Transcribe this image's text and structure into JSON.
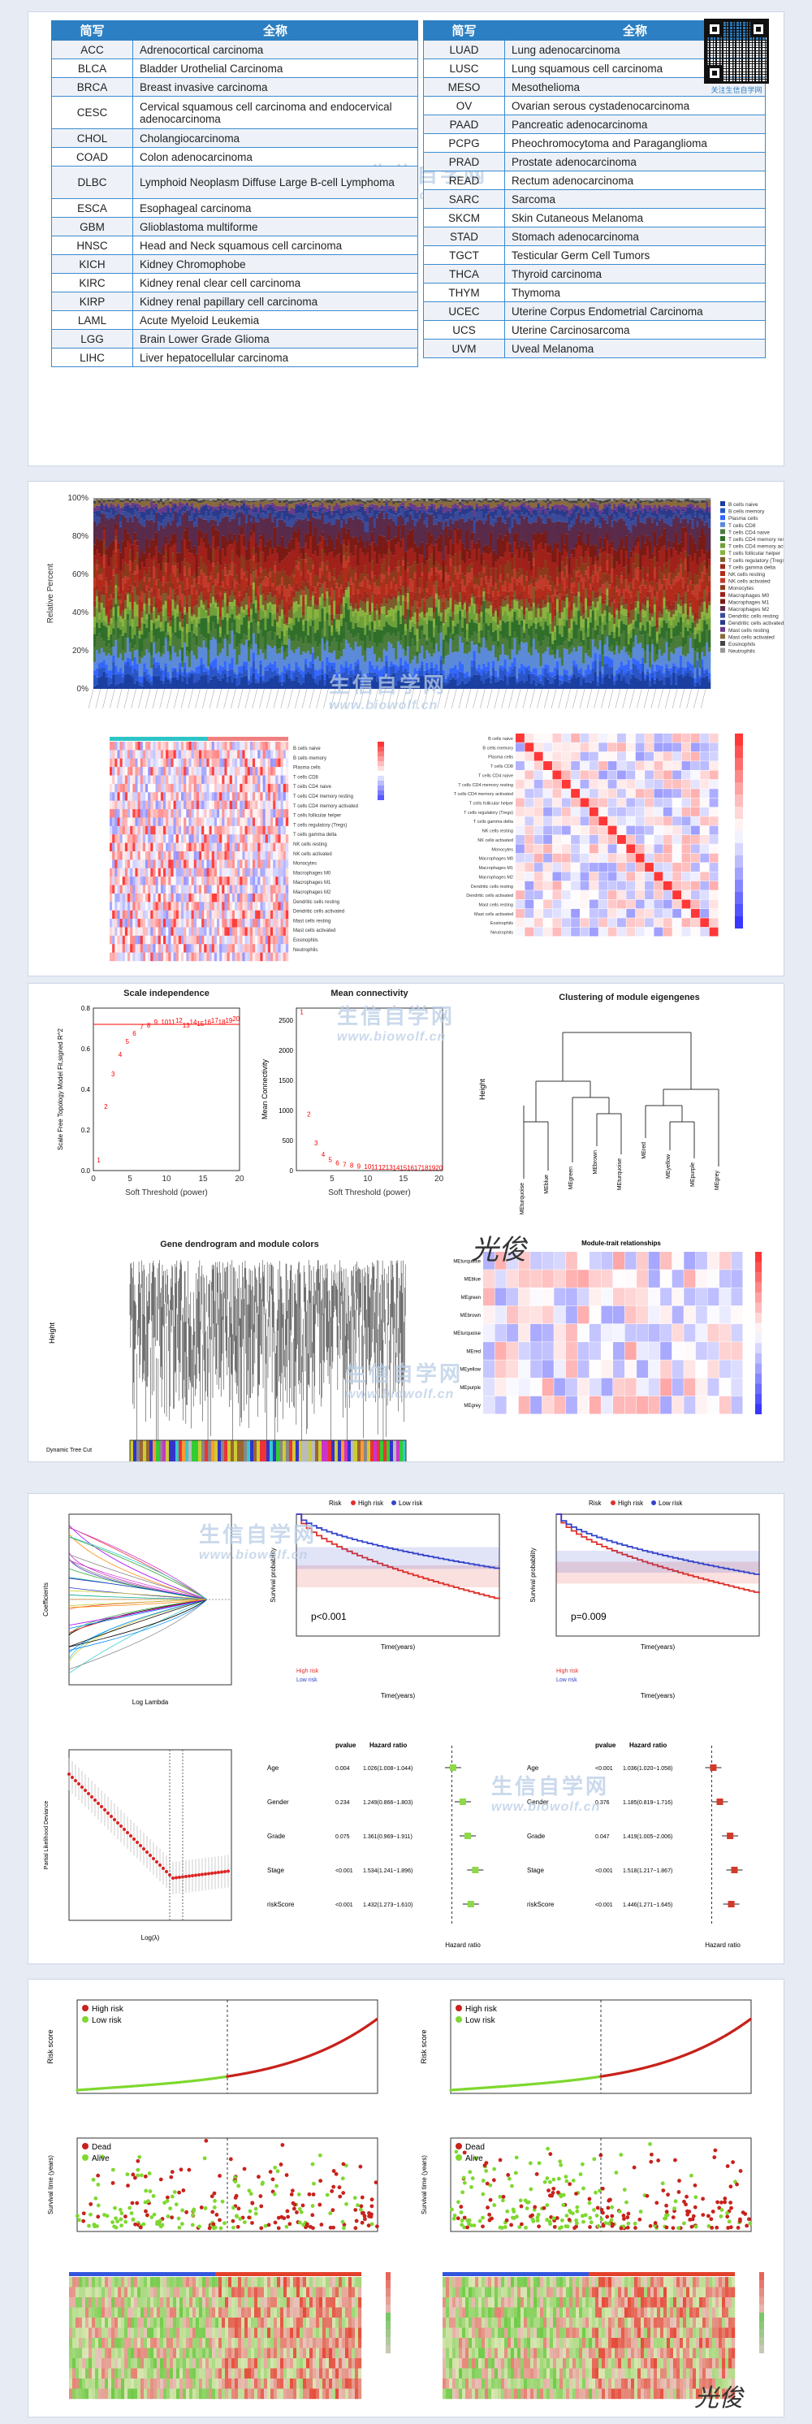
{
  "table_left": {
    "headers": [
      "简写",
      "全称"
    ],
    "rows": [
      [
        "ACC",
        "Adrenocortical carcinoma"
      ],
      [
        "BLCA",
        "Bladder Urothelial Carcinoma"
      ],
      [
        "BRCA",
        "Breast invasive carcinoma"
      ],
      [
        "CESC",
        "Cervical squamous cell carcinoma and endocervical adenocarcinoma"
      ],
      [
        "CHOL",
        "Cholangiocarcinoma"
      ],
      [
        "COAD",
        "Colon adenocarcinoma"
      ],
      [
        "DLBC",
        "Lymphoid Neoplasm Diffuse Large B-cell Lymphoma"
      ],
      [
        "ESCA",
        "Esophageal carcinoma"
      ],
      [
        "GBM",
        "Glioblastoma multiforme"
      ],
      [
        "HNSC",
        "Head and Neck squamous cell carcinoma"
      ],
      [
        "KICH",
        "Kidney Chromophobe"
      ],
      [
        "KIRC",
        "Kidney renal clear cell carcinoma"
      ],
      [
        "KIRP",
        "Kidney renal papillary cell carcinoma"
      ],
      [
        "LAML",
        "Acute Myeloid Leukemia"
      ],
      [
        "LGG",
        "Brain Lower Grade Glioma"
      ],
      [
        "LIHC",
        "Liver hepatocellular carcinoma"
      ]
    ]
  },
  "table_right": {
    "headers": [
      "简写",
      "全称"
    ],
    "rows": [
      [
        "LUAD",
        "Lung adenocarcinoma"
      ],
      [
        "LUSC",
        "Lung squamous cell carcinoma"
      ],
      [
        "MESO",
        "Mesothelioma"
      ],
      [
        "OV",
        "Ovarian serous cystadenocarcinoma"
      ],
      [
        "PAAD",
        "Pancreatic adenocarcinoma"
      ],
      [
        "PCPG",
        "Pheochromocytoma and Paraganglioma"
      ],
      [
        "PRAD",
        "Prostate adenocarcinoma"
      ],
      [
        "READ",
        "Rectum adenocarcinoma"
      ],
      [
        "SARC",
        "Sarcoma"
      ],
      [
        "SKCM",
        "Skin Cutaneous Melanoma"
      ],
      [
        "STAD",
        "Stomach adenocarcinoma"
      ],
      [
        "TGCT",
        "Testicular Germ Cell Tumors"
      ],
      [
        "THCA",
        "Thyroid carcinoma"
      ],
      [
        "THYM",
        "Thymoma"
      ],
      [
        "UCEC",
        "Uterine Corpus Endometrial Carcinoma"
      ],
      [
        "UCS",
        "Uterine Carcinosarcoma"
      ],
      [
        "UVM",
        "Uveal Melanoma"
      ]
    ]
  },
  "qr_caption": "关注生信自学网",
  "watermark": {
    "cn": "生信自学网",
    "en": "www.biowolf.cn"
  },
  "signature": "光俊",
  "colors": {
    "table_header": "#2c7fc2",
    "high_risk": "#e0302a",
    "low_risk": "#3344cc",
    "alive": "#7fd830",
    "dead": "#c8221c"
  },
  "cibersort": {
    "ylabel": "Relative Percent",
    "ticks": [
      "0%",
      "20%",
      "40%",
      "60%",
      "80%",
      "100%"
    ],
    "legend": [
      "B cells naive",
      "B cells memory",
      "Plasma cells",
      "T cells CD8",
      "T cells CD4 naive",
      "T cells CD4 memory resting",
      "T cells CD4 memory activated",
      "T cells follicular helper",
      "T cells regulatory (Tregs)",
      "T cells gamma delta",
      "NK cells resting",
      "NK cells activated",
      "Monocytes",
      "Macrophages M0",
      "Macrophages M1",
      "Macrophages M2",
      "Dendritic cells resting",
      "Dendritic cells activated",
      "Mast cells resting",
      "Mast cells activated",
      "Eosinophils",
      "Neutrophils"
    ]
  },
  "wgcna": {
    "scale_title": "Scale independence",
    "scale_xlabel": "Soft Threshold (power)",
    "scale_ylabel": "Scale Free Topology Model Fit,signed R^2",
    "conn_title": "Mean connectivity",
    "conn_xlabel": "Soft Threshold (power)",
    "conn_ylabel": "Mean Connectivity",
    "cluster_title": "Clustering of module eigengenes",
    "cluster_ylabel": "Height",
    "dendro_title": "Gene dendrogram and module colors",
    "dendro_ylabel": "Height",
    "dynamic_label": "Dynamic Tree Cut",
    "trait_title": "Module-trait relationships",
    "modules": [
      "MEturquoise",
      "MEblue",
      "MEgreen",
      "MEbrown",
      "MEturquoise",
      "MEred",
      "MEyellow",
      "MEpurple",
      "MEgrey"
    ]
  },
  "survival": {
    "legend_title": "Risk",
    "legend_high": "High risk",
    "legend_low": "Low risk",
    "p1": "p<0.001",
    "p2": "p=0.009",
    "xlabel": "Time(years)",
    "ylabel": "Survival probability",
    "lasso_xlabel": "Log Lambda",
    "lasso_ylabel": "Coefficients",
    "cv_xlabel": "Log(λ)",
    "cv_ylabel": "Partial Likelihood Deviance",
    "forest_header": [
      "pvalue",
      "Hazard ratio"
    ],
    "forest_left": [
      [
        "Age",
        "0.004",
        "1.026(1.008~1.044)"
      ],
      [
        "Gender",
        "0.234",
        "1.249(0.866~1.803)"
      ],
      [
        "Grade",
        "0.075",
        "1.361(0.969~1.911)"
      ],
      [
        "Stage",
        "<0.001",
        "1.534(1.241~1.896)"
      ],
      [
        "riskScore",
        "<0.001",
        "1.432(1.273~1.610)"
      ]
    ],
    "forest_right": [
      [
        "Age",
        "<0.001",
        "1.036(1.020~1.058)"
      ],
      [
        "Gender",
        "0.376",
        "1.185(0.819~1.716)"
      ],
      [
        "Grade",
        "0.047",
        "1.419(1.005~2.006)"
      ],
      [
        "Stage",
        "<0.001",
        "1.518(1.217~1.867)"
      ],
      [
        "riskScore",
        "<0.001",
        "1.446(1.271~1.645)"
      ]
    ],
    "forest_xlabel": "Hazard ratio"
  },
  "risk_plots": {
    "high": "High risk",
    "low": "Low risk",
    "dead": "Dead",
    "alive": "Alive",
    "score_ylabel": "Risk score",
    "time_ylabel": "Survival time (years)"
  }
}
